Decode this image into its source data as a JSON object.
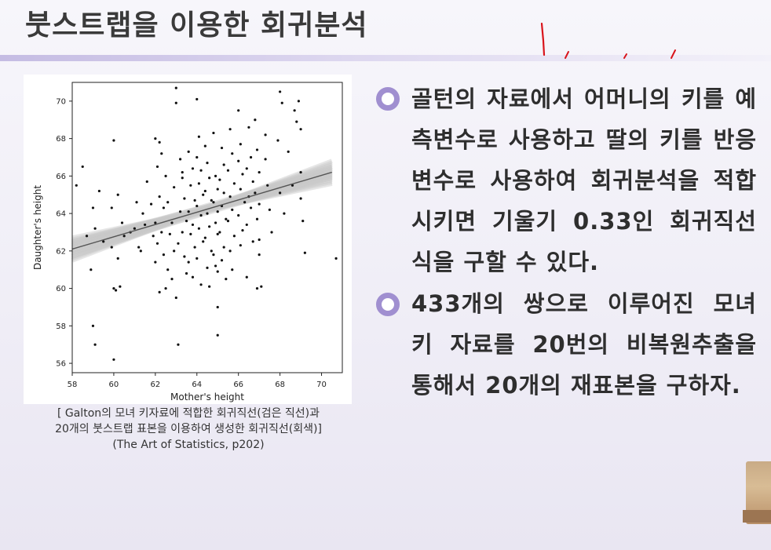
{
  "slide": {
    "title": "붓스트랩을 이용한 회귀분석",
    "caption_lines": [
      "[ Galton의 모녀 키자료에 적합한 회귀직선(검은 직선)과",
      "20개의 붓스트랩 표본을 이용하여 생성한 회귀직선(회색)]",
      "(The Art of Statistics, p202)"
    ],
    "paragraphs": [
      "골턴의 자료에서 어머니의 키를 예측변수로 사용하고 딸의 키를 반응변수로 사용하여 회귀분석을 적합 시키면 기울기 0.33인 회귀직선식을 구할 수 있다.",
      "433개의 쌍으로 이루어진 모녀 키 자료를 20번의 비복원추출을 통해서 20개의 재표본을 구하자."
    ],
    "colors": {
      "accent": "#a08fd0",
      "title_bar": "#c5bce3",
      "ink": "#d9141b",
      "fit_line": "#555555",
      "bootstrap_band": "#c8c8c8"
    }
  },
  "chart_data": {
    "type": "scatter",
    "xlabel": "Mother's height",
    "ylabel": "Daughter's height",
    "xlim": [
      58,
      71
    ],
    "ylim": [
      55.5,
      71
    ],
    "xticks": [
      58,
      60,
      62,
      64,
      66,
      68,
      70
    ],
    "yticks": [
      56,
      58,
      60,
      62,
      64,
      66,
      68,
      70
    ],
    "fit_line": {
      "x": [
        58,
        70.5
      ],
      "y": [
        62.1,
        66.2
      ],
      "slope": 0.33
    },
    "bootstrap_lines": [
      {
        "y0": 61.7,
        "y1": 66.5
      },
      {
        "y0": 62.5,
        "y1": 65.9
      },
      {
        "y0": 61.9,
        "y1": 66.0
      },
      {
        "y0": 62.3,
        "y1": 66.4
      },
      {
        "y0": 61.5,
        "y1": 66.8
      },
      {
        "y0": 62.6,
        "y1": 65.7
      },
      {
        "y0": 62.0,
        "y1": 66.3
      },
      {
        "y0": 62.2,
        "y1": 66.1
      },
      {
        "y0": 61.8,
        "y1": 66.6
      },
      {
        "y0": 62.4,
        "y1": 65.8
      },
      {
        "y0": 62.1,
        "y1": 66.2
      },
      {
        "y0": 61.6,
        "y1": 66.7
      },
      {
        "y0": 62.7,
        "y1": 65.6
      },
      {
        "y0": 61.9,
        "y1": 66.4
      },
      {
        "y0": 62.3,
        "y1": 66.0
      },
      {
        "y0": 62.0,
        "y1": 66.5
      },
      {
        "y0": 62.5,
        "y1": 66.1
      },
      {
        "y0": 61.7,
        "y1": 66.3
      },
      {
        "y0": 62.2,
        "y1": 65.9
      },
      {
        "y0": 62.4,
        "y1": 66.2
      }
    ],
    "points": [
      [
        58.2,
        65.5
      ],
      [
        58.5,
        66.5
      ],
      [
        58.7,
        62.8
      ],
      [
        59.0,
        64.3
      ],
      [
        59.1,
        63.2
      ],
      [
        59.3,
        65.2
      ],
      [
        58.9,
        61.0
      ],
      [
        59.0,
        58.0
      ],
      [
        59.1,
        57.0
      ],
      [
        59.5,
        62.5
      ],
      [
        60.0,
        67.9
      ],
      [
        60.2,
        65.0
      ],
      [
        60.0,
        60.0
      ],
      [
        60.1,
        59.9
      ],
      [
        60.3,
        60.1
      ],
      [
        60.0,
        56.2
      ],
      [
        60.5,
        62.8
      ],
      [
        60.4,
        63.5
      ],
      [
        59.9,
        62.2
      ],
      [
        60.2,
        61.6
      ],
      [
        61.0,
        63.2
      ],
      [
        61.2,
        62.2
      ],
      [
        61.3,
        62.0
      ],
      [
        61.5,
        63.4
      ],
      [
        61.6,
        65.7
      ],
      [
        61.1,
        64.6
      ],
      [
        61.8,
        64.5
      ],
      [
        62.0,
        68.0
      ],
      [
        62.2,
        67.8
      ],
      [
        62.1,
        66.5
      ],
      [
        62.3,
        67.2
      ],
      [
        62.5,
        66.0
      ],
      [
        62.2,
        64.9
      ],
      [
        62.4,
        64.3
      ],
      [
        62.0,
        63.5
      ],
      [
        62.3,
        63.0
      ],
      [
        62.1,
        62.4
      ],
      [
        62.4,
        61.8
      ],
      [
        62.0,
        61.4
      ],
      [
        62.2,
        59.8
      ],
      [
        62.6,
        64.6
      ],
      [
        62.8,
        63.5
      ],
      [
        62.7,
        62.9
      ],
      [
        62.9,
        62.0
      ],
      [
        62.6,
        61.0
      ],
      [
        62.8,
        60.5
      ],
      [
        63.0,
        70.7
      ],
      [
        63.0,
        69.9
      ],
      [
        63.1,
        57.0
      ],
      [
        62.9,
        65.4
      ],
      [
        63.2,
        66.9
      ],
      [
        63.3,
        65.9
      ],
      [
        63.4,
        64.8
      ],
      [
        63.2,
        64.1
      ],
      [
        63.5,
        63.6
      ],
      [
        63.3,
        63.0
      ],
      [
        63.1,
        62.4
      ],
      [
        63.4,
        61.7
      ],
      [
        63.5,
        60.8
      ],
      [
        63.3,
        66.2
      ],
      [
        63.6,
        67.3
      ],
      [
        63.8,
        66.4
      ],
      [
        63.7,
        65.5
      ],
      [
        63.9,
        64.7
      ],
      [
        63.6,
        64.1
      ],
      [
        63.8,
        63.4
      ],
      [
        63.7,
        62.9
      ],
      [
        63.9,
        62.2
      ],
      [
        63.6,
        61.4
      ],
      [
        63.8,
        60.6
      ],
      [
        64.0,
        70.1
      ],
      [
        64.1,
        68.1
      ],
      [
        64.0,
        67.0
      ],
      [
        64.2,
        66.3
      ],
      [
        64.1,
        65.6
      ],
      [
        64.3,
        65.0
      ],
      [
        64.0,
        64.4
      ],
      [
        64.2,
        63.9
      ],
      [
        64.1,
        63.2
      ],
      [
        64.3,
        62.5
      ],
      [
        64.0,
        61.6
      ],
      [
        64.2,
        60.2
      ],
      [
        64.4,
        67.6
      ],
      [
        64.5,
        66.7
      ],
      [
        64.6,
        65.9
      ],
      [
        64.4,
        65.2
      ],
      [
        64.7,
        64.7
      ],
      [
        64.5,
        64.0
      ],
      [
        64.6,
        63.3
      ],
      [
        64.4,
        62.7
      ],
      [
        64.7,
        62.0
      ],
      [
        64.5,
        61.1
      ],
      [
        64.6,
        60.1
      ],
      [
        64.8,
        68.3
      ],
      [
        64.9,
        66.0
      ],
      [
        65.0,
        65.3
      ],
      [
        64.8,
        64.6
      ],
      [
        65.0,
        64.1
      ],
      [
        64.9,
        63.5
      ],
      [
        65.0,
        62.9
      ],
      [
        64.8,
        61.8
      ],
      [
        65.0,
        60.9
      ],
      [
        65.0,
        57.5
      ],
      [
        65.0,
        59.0
      ],
      [
        65.2,
        67.5
      ],
      [
        65.3,
        66.6
      ],
      [
        65.1,
        65.8
      ],
      [
        65.3,
        65.1
      ],
      [
        65.2,
        64.4
      ],
      [
        65.4,
        63.7
      ],
      [
        65.1,
        63.0
      ],
      [
        65.3,
        62.2
      ],
      [
        65.2,
        61.5
      ],
      [
        65.4,
        60.5
      ],
      [
        65.6,
        68.5
      ],
      [
        65.7,
        67.2
      ],
      [
        65.5,
        66.3
      ],
      [
        65.8,
        65.6
      ],
      [
        65.6,
        64.9
      ],
      [
        65.7,
        64.2
      ],
      [
        65.5,
        63.6
      ],
      [
        65.8,
        62.8
      ],
      [
        65.6,
        62.0
      ],
      [
        65.7,
        61.0
      ],
      [
        66.0,
        69.5
      ],
      [
        66.1,
        67.7
      ],
      [
        66.0,
        66.8
      ],
      [
        66.2,
        66.1
      ],
      [
        66.1,
        65.3
      ],
      [
        66.3,
        64.6
      ],
      [
        66.0,
        63.9
      ],
      [
        66.2,
        63.1
      ],
      [
        66.1,
        62.3
      ],
      [
        66.4,
        60.6
      ],
      [
        66.5,
        68.6
      ],
      [
        66.6,
        67.0
      ],
      [
        66.4,
        66.4
      ],
      [
        66.7,
        65.7
      ],
      [
        66.5,
        64.9
      ],
      [
        66.6,
        64.3
      ],
      [
        66.4,
        63.4
      ],
      [
        66.7,
        62.5
      ],
      [
        66.8,
        69.0
      ],
      [
        66.9,
        67.4
      ],
      [
        67.0,
        66.2
      ],
      [
        66.8,
        65.1
      ],
      [
        67.0,
        64.5
      ],
      [
        66.9,
        63.7
      ],
      [
        67.0,
        62.6
      ],
      [
        66.9,
        60.0
      ],
      [
        67.1,
        60.1
      ],
      [
        67.0,
        61.8
      ],
      [
        67.3,
        66.9
      ],
      [
        67.4,
        65.5
      ],
      [
        67.5,
        64.2
      ],
      [
        67.6,
        63.0
      ],
      [
        67.3,
        68.2
      ],
      [
        67.9,
        67.9
      ],
      [
        68.0,
        70.5
      ],
      [
        68.1,
        69.9
      ],
      [
        68.0,
        65.1
      ],
      [
        68.2,
        64.0
      ],
      [
        68.4,
        67.3
      ],
      [
        68.6,
        65.5
      ],
      [
        68.7,
        69.5
      ],
      [
        68.8,
        68.9
      ],
      [
        69.0,
        68.5
      ],
      [
        69.0,
        66.2
      ],
      [
        69.1,
        63.6
      ],
      [
        69.2,
        61.9
      ],
      [
        68.9,
        70.0
      ],
      [
        69.0,
        64.8
      ],
      [
        70.7,
        61.6
      ],
      [
        59.9,
        64.3
      ],
      [
        60.8,
        63.0
      ],
      [
        61.4,
        64.0
      ],
      [
        61.9,
        62.8
      ],
      [
        62.5,
        60.0
      ],
      [
        63.0,
        59.5
      ],
      [
        64.9,
        61.2
      ]
    ]
  }
}
